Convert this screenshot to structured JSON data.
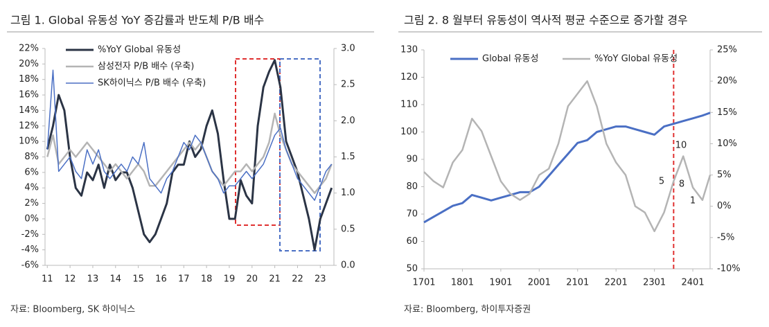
{
  "chart_data": [
    {
      "type": "line",
      "title": "그림 1. Global 유동성 YoY 증감률과 반도체 P/B 배수",
      "source": "자료: Bloomberg, SK 하이닉스",
      "x": [
        11,
        11.25,
        11.5,
        11.75,
        12,
        12.25,
        12.5,
        12.75,
        13,
        13.25,
        13.5,
        13.75,
        14,
        14.25,
        14.5,
        14.75,
        15,
        15.25,
        15.5,
        15.75,
        16,
        16.25,
        16.5,
        16.75,
        17,
        17.25,
        17.5,
        17.75,
        18,
        18.25,
        18.5,
        18.75,
        19,
        19.25,
        19.5,
        19.75,
        20,
        20.25,
        20.5,
        20.75,
        21,
        21.25,
        21.5,
        21.75,
        22,
        22.25,
        22.5,
        22.75,
        23,
        23.25,
        23.5
      ],
      "xlim": [
        10.9,
        23.6
      ],
      "xticks": [
        11,
        12,
        13,
        14,
        15,
        16,
        17,
        18,
        19,
        20,
        21,
        22,
        23
      ],
      "ylim": [
        -6,
        22
      ],
      "yticks": [
        {
          "value": -6,
          "label": "-6%"
        },
        {
          "value": -4,
          "label": "-4%"
        },
        {
          "value": -2,
          "label": "-2%"
        },
        {
          "value": 0,
          "label": "0%"
        },
        {
          "value": 2,
          "label": "2%"
        },
        {
          "value": 4,
          "label": "4%"
        },
        {
          "value": 6,
          "label": "6%"
        },
        {
          "value": 8,
          "label": "8%"
        },
        {
          "value": 10,
          "label": "10%"
        },
        {
          "value": 12,
          "label": "12%"
        },
        {
          "value": 14,
          "label": "14%"
        },
        {
          "value": 16,
          "label": "16%"
        },
        {
          "value": 18,
          "label": "18%"
        },
        {
          "value": 20,
          "label": "20%"
        },
        {
          "value": 22,
          "label": "22%"
        }
      ],
      "y2lim": [
        0,
        3
      ],
      "y2ticks": [
        {
          "value": 0,
          "label": "0.0"
        },
        0.5,
        {
          "value": 1,
          "label": "1.0"
        },
        1.5,
        {
          "value": 2,
          "label": "2.0"
        },
        2.5,
        {
          "value": 3,
          "label": "3.0"
        }
      ],
      "legend": "upper left",
      "series": [
        {
          "name": "%YoY Global 유동성",
          "color": "#2b3445",
          "width": 3,
          "values": [
            9,
            12,
            16,
            14,
            8,
            4,
            3,
            6,
            5,
            7,
            4,
            7,
            5,
            6,
            6,
            4,
            1,
            -2,
            -3,
            -2,
            0,
            2,
            6,
            7,
            7,
            10,
            8,
            9,
            12,
            14,
            11,
            5,
            0,
            0,
            5,
            3,
            2,
            12,
            17,
            19,
            20.5,
            17,
            10,
            8,
            6,
            3,
            0,
            -4,
            0,
            2,
            4
          ]
        },
        {
          "name": "삼성전자 P/B 배수 (우축)",
          "color": "#b4b4b4",
          "width": 2.5,
          "axis": "y2",
          "values": [
            1.5,
            1.8,
            1.4,
            1.5,
            1.6,
            1.5,
            1.6,
            1.7,
            1.6,
            1.5,
            1.4,
            1.3,
            1.4,
            1.3,
            1.2,
            1.3,
            1.4,
            1.3,
            1.1,
            1.1,
            1.2,
            1.3,
            1.4,
            1.5,
            1.6,
            1.7,
            1.6,
            1.7,
            1.5,
            1.3,
            1.2,
            1.1,
            1.2,
            1.3,
            1.3,
            1.4,
            1.3,
            1.4,
            1.5,
            1.7,
            2.1,
            1.8,
            1.6,
            1.4,
            1.3,
            1.2,
            1.1,
            1.0,
            1.1,
            1.2,
            1.4
          ]
        },
        {
          "name": "SK하이닉스 P/B 배수 (우축)",
          "color": "#4a6fc4",
          "width": 1.5,
          "axis": "y2",
          "values": [
            1.6,
            2.7,
            1.3,
            1.4,
            1.5,
            1.3,
            1.2,
            1.6,
            1.4,
            1.6,
            1.3,
            1.2,
            1.3,
            1.4,
            1.3,
            1.5,
            1.4,
            1.7,
            1.2,
            1.1,
            1.0,
            1.2,
            1.3,
            1.5,
            1.7,
            1.6,
            1.8,
            1.7,
            1.5,
            1.3,
            1.2,
            1.0,
            1.1,
            1.1,
            1.2,
            1.3,
            1.2,
            1.3,
            1.4,
            1.6,
            1.8,
            1.9,
            1.6,
            1.4,
            1.2,
            1.1,
            1.0,
            0.9,
            1.1,
            1.3,
            1.4
          ]
        }
      ]
    },
    {
      "type": "line",
      "title": "그림 2. 8 월부터 유동성이 역사적 평균 수준으로 증가할 경우",
      "source": "자료: Bloomberg,  하이투자증권",
      "x": [
        17,
        17.25,
        17.5,
        17.75,
        18,
        18.25,
        18.5,
        18.75,
        19,
        19.25,
        19.5,
        19.75,
        20,
        20.25,
        20.5,
        20.75,
        21,
        21.25,
        21.5,
        21.75,
        22,
        22.25,
        22.5,
        22.75,
        23,
        23.25,
        23.5,
        23.75,
        24,
        24.25,
        24.45
      ],
      "xlim": [
        17,
        24.45
      ],
      "xticks": [
        {
          "value": 17,
          "label": "1701"
        },
        {
          "value": 18,
          "label": "1801"
        },
        {
          "value": 19,
          "label": "1901"
        },
        {
          "value": 20,
          "label": "2001"
        },
        {
          "value": 21,
          "label": "2101"
        },
        {
          "value": 22,
          "label": "2201"
        },
        {
          "value": 23,
          "label": "2301"
        },
        {
          "value": 24,
          "label": "2401"
        }
      ],
      "ylim": [
        50,
        130
      ],
      "yticks": [
        50,
        60,
        70,
        80,
        90,
        100,
        110,
        120,
        130
      ],
      "y2lim": [
        -10,
        25
      ],
      "y2ticks": [
        {
          "value": -10,
          "label": "-10%"
        },
        {
          "value": -5,
          "label": "-5%"
        },
        {
          "value": 0,
          "label": "0%"
        },
        {
          "value": 5,
          "label": "5%"
        },
        {
          "value": 10,
          "label": "10%"
        },
        {
          "value": 15,
          "label": "15%"
        },
        {
          "value": 20,
          "label": "20%"
        },
        {
          "value": 25,
          "label": "25%"
        }
      ],
      "legend": "upper center",
      "forecast_start": 23.5,
      "annotations": [
        "5",
        "8",
        "10",
        "1"
      ],
      "series": [
        {
          "name": "Global 유동성",
          "color": "#4a6fc4",
          "width": 3,
          "values": [
            67,
            69,
            71,
            73,
            74,
            77,
            76,
            75,
            76,
            77,
            78,
            78,
            80,
            84,
            88,
            92,
            96,
            97,
            100,
            101,
            102,
            102,
            101,
            100,
            99,
            102,
            103,
            104,
            105,
            106,
            107
          ]
        },
        {
          "name": "%YoY Global 유동성",
          "color": "#b4b4b4",
          "width": 2.5,
          "axis": "y2",
          "values": [
            5.5,
            4,
            3,
            7,
            9,
            14,
            12,
            8,
            4,
            2,
            1,
            2,
            5,
            6,
            10,
            16,
            18,
            20,
            16,
            10,
            7,
            5,
            0,
            -1,
            -4,
            -1,
            4,
            8,
            3,
            1,
            5
          ]
        }
      ]
    }
  ]
}
